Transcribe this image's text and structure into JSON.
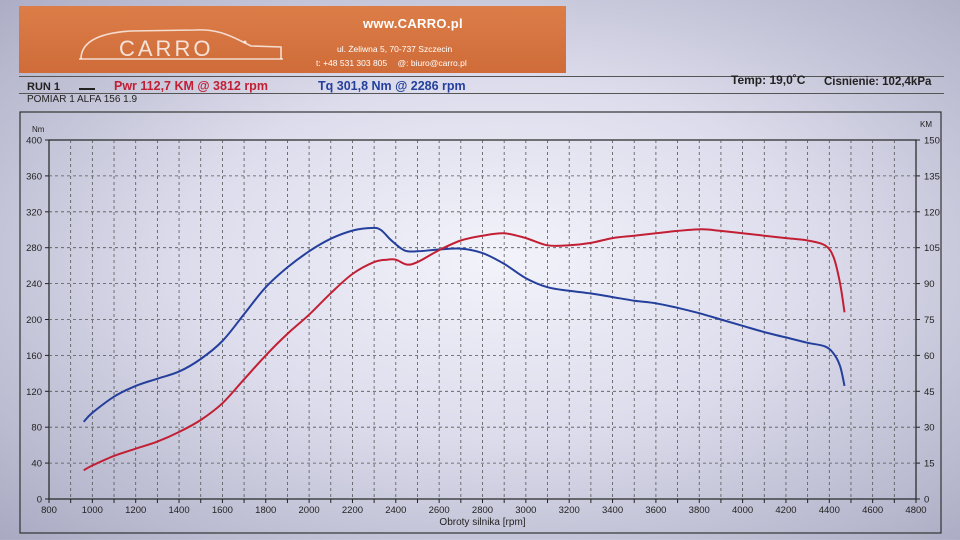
{
  "banner": {
    "logo_text": "CARRO",
    "url": "www.CARRO.pl",
    "address": "ul. Żeliwna 5, 70-737 Szczecin",
    "phone": "t: +48 531 303 805",
    "email": "@: biuro@carro.pl"
  },
  "header": {
    "run_label": "RUN 1",
    "power_summary": "Pwr  112,7 KM @ 3812 rpm",
    "torque_summary": "Tq 301,8 Nm @ 2286 rpm",
    "temperature": "Temp: 19,0˚C",
    "pressure": "Cisnienie: 102,4kPa",
    "subtitle": "POMIAR 1 ALFA 156 1.9"
  },
  "colors": {
    "power": "#c21f34",
    "torque": "#243f9c",
    "banner": "#d4733f"
  },
  "chart_data": {
    "type": "line",
    "title": "",
    "xlabel": "Obroty silnika [rpm]",
    "ylabel_left": "Nm",
    "ylabel_right": "KM",
    "xlim": [
      800,
      4800
    ],
    "ylim_left": [
      0,
      400
    ],
    "ylim_right": [
      0,
      150
    ],
    "x_ticks": [
      "800",
      "900",
      "1000",
      "1100",
      "1200",
      "1300",
      "1400",
      "1500",
      "1600",
      "1700",
      "1800",
      "1900",
      "2000",
      "2100",
      "2200",
      "2300",
      "2400",
      "2500",
      "2600",
      "2700",
      "2800",
      "2900",
      "3000",
      "3100",
      "3200",
      "3300",
      "3400",
      "3500",
      "3600",
      "3700",
      "3800",
      "3900",
      "4000",
      "4100",
      "4200",
      "4300",
      "4400",
      "4500",
      "4600",
      "4700",
      "4800"
    ],
    "x_tick_labels": [
      "800",
      "",
      "1000",
      "",
      "1200",
      "",
      "1400",
      "",
      "1600",
      "",
      "1800",
      "",
      "2000",
      "",
      "2200",
      "",
      "2400",
      "",
      "2600",
      "",
      "2800",
      "",
      "3000",
      "",
      "3200",
      "",
      "3400",
      "",
      "3600",
      "",
      "3800",
      "",
      "4000",
      "",
      "4200",
      "",
      "4400",
      "",
      "4600",
      "",
      "4800"
    ],
    "y_left_ticks": [
      "0",
      "40",
      "80",
      "120",
      "160",
      "200",
      "240",
      "280",
      "320",
      "360",
      "400"
    ],
    "y_right_ticks": [
      "0",
      "15",
      "30",
      "45",
      "60",
      "75",
      "90",
      "105",
      "120",
      "135",
      "150"
    ],
    "grid": true,
    "series": [
      {
        "name": "Tq",
        "axis": "left",
        "x": [
          960,
          1000,
          1100,
          1200,
          1300,
          1400,
          1500,
          1600,
          1700,
          1800,
          1900,
          2000,
          2100,
          2200,
          2286,
          2330,
          2380,
          2440,
          2500,
          2600,
          2700,
          2800,
          2900,
          3000,
          3100,
          3200,
          3300,
          3400,
          3500,
          3600,
          3700,
          3800,
          3900,
          4000,
          4100,
          4200,
          4300,
          4380,
          4420,
          4450,
          4470
        ],
        "values": [
          86,
          96,
          114,
          126,
          134,
          142,
          156,
          176,
          206,
          236,
          258,
          276,
          290,
          299,
          302,
          300,
          288,
          277,
          276,
          278,
          279,
          274,
          262,
          246,
          236,
          232,
          229,
          225,
          221,
          218,
          213,
          207,
          200,
          193,
          186,
          180,
          174,
          170,
          162,
          148,
          126
        ]
      },
      {
        "name": "Pwr",
        "axis": "right",
        "x": [
          960,
          1000,
          1100,
          1200,
          1300,
          1400,
          1500,
          1600,
          1700,
          1800,
          1900,
          2000,
          2100,
          2200,
          2300,
          2360,
          2400,
          2450,
          2500,
          2600,
          2700,
          2800,
          2900,
          3000,
          3100,
          3200,
          3300,
          3400,
          3500,
          3600,
          3700,
          3812,
          3900,
          4000,
          4100,
          4200,
          4300,
          4380,
          4420,
          4450,
          4470
        ],
        "values": [
          12,
          14,
          18,
          21,
          24,
          28,
          33,
          40,
          50,
          60,
          69,
          77,
          86,
          94,
          99,
          100,
          100,
          98,
          99,
          104,
          108,
          110,
          111,
          109,
          106,
          106,
          107,
          109,
          110,
          111,
          112,
          112.7,
          112,
          111,
          110,
          109,
          108,
          106,
          101,
          90,
          78
        ]
      }
    ]
  }
}
